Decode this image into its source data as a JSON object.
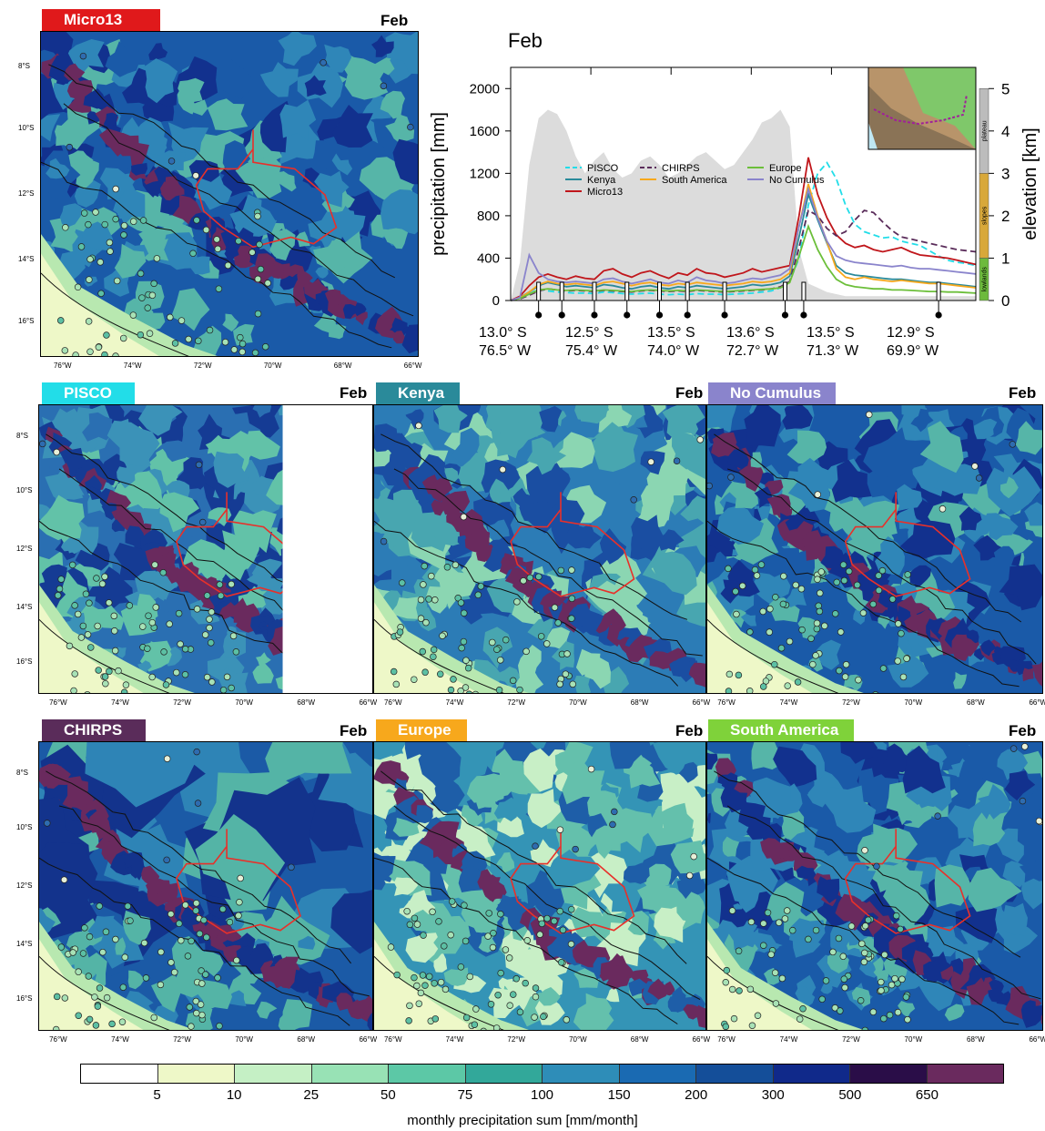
{
  "month": "Feb",
  "colors": {
    "micro13": "#e0191b",
    "pisco": "#22dde8",
    "kenya": "#2a8a9a",
    "no_cumulus": "#8a84cc",
    "chirps": "#5a2c5a",
    "europe": "#f7a81c",
    "south_america": "#7fd23a",
    "boundary": "#e8302a"
  },
  "maps": [
    {
      "id": "micro13",
      "label": "Micro13",
      "month": "Feb",
      "color": "#e0191b",
      "style": "wet",
      "cut": false
    },
    {
      "id": "pisco",
      "label": "PISCO",
      "month": "Feb",
      "color": "#22dde8",
      "style": "smooth",
      "cut": true
    },
    {
      "id": "kenya",
      "label": "Kenya",
      "month": "Feb",
      "color": "#2a8a9a",
      "style": "noisy",
      "cut": false
    },
    {
      "id": "nocumulus",
      "label": "No Cumulus",
      "month": "Feb",
      "color": "#8a84cc",
      "style": "wet",
      "cut": false
    },
    {
      "id": "chirps",
      "label": "CHIRPS",
      "month": "Feb",
      "color": "#5a2c5a",
      "style": "chirps",
      "cut": false
    },
    {
      "id": "europe",
      "label": "Europe",
      "month": "Feb",
      "color": "#f7a81c",
      "style": "dry",
      "cut": false
    },
    {
      "id": "southamerica",
      "label": "South America",
      "month": "Feb",
      "color": "#7fd23a",
      "style": "wet",
      "cut": false
    }
  ],
  "lat_labels": [
    "8°S",
    "10°S",
    "12°S",
    "14°S",
    "16°S"
  ],
  "lon_labels": [
    "76°W",
    "74°W",
    "72°W",
    "70°W",
    "68°W",
    "66°W"
  ],
  "chart_data": {
    "type": "line",
    "title": "Feb",
    "ylabel": "precipitation [mm]",
    "y2label": "elevation [km]",
    "ylim": [
      0,
      2200
    ],
    "yticks": [
      0,
      400,
      800,
      1200,
      1600,
      2000
    ],
    "y2lim": [
      0,
      5.5
    ],
    "y2ticks": [
      0,
      1,
      2,
      3,
      4,
      5
    ],
    "x_tick_labels": [
      {
        "lat": "13.0° S",
        "lon": "76.5° W"
      },
      {
        "lat": "12.5° S",
        "lon": "75.4° W"
      },
      {
        "lat": "13.5° S",
        "lon": "74.0° W"
      },
      {
        "lat": "13.6° S",
        "lon": "72.7° W"
      },
      {
        "lat": "13.5° S",
        "lon": "71.3° W"
      },
      {
        "lat": "12.9° S",
        "lon": "69.9° W"
      }
    ],
    "x": [
      0,
      2,
      4,
      6,
      8,
      10,
      12,
      14,
      16,
      18,
      20,
      22,
      24,
      26,
      28,
      30,
      32,
      34,
      36,
      38,
      40,
      42,
      44,
      46,
      48,
      50,
      52,
      54,
      56,
      58,
      60,
      62,
      64,
      66,
      68,
      70,
      72,
      74,
      76,
      78,
      80,
      82,
      84,
      86,
      88,
      90,
      92,
      94,
      96,
      98,
      100
    ],
    "elevation_km": [
      0.0,
      0.9,
      3.2,
      4.3,
      4.5,
      4.4,
      4.0,
      3.4,
      3.0,
      3.3,
      3.5,
      3.1,
      2.9,
      3.0,
      3.3,
      3.4,
      3.2,
      2.9,
      3.0,
      3.2,
      3.4,
      3.5,
      3.3,
      3.1,
      3.2,
      3.5,
      3.8,
      4.2,
      4.3,
      4.5,
      4.1,
      1.2,
      0.4,
      0.3,
      0.2,
      0.15,
      0.1,
      0.1,
      0.1,
      0.1,
      0.1,
      0.1,
      0.1,
      0.1,
      0.1,
      0.1,
      0.1,
      0.1,
      0.1,
      0.1,
      0.1
    ],
    "elevation_bands": [
      {
        "label": "plateau",
        "color": "#bcbcbc",
        "from_km": 3.0,
        "to_km": 5.0
      },
      {
        "label": "slopes",
        "color": "#d8a83a",
        "from_km": 1.0,
        "to_km": 3.0
      },
      {
        "label": "lowlands",
        "color": "#6dba3c",
        "from_km": 0.0,
        "to_km": 1.0
      }
    ],
    "series": [
      {
        "name": "PISCO",
        "color": "#22dde8",
        "dash": true,
        "values": [
          0,
          20,
          60,
          110,
          90,
          80,
          75,
          70,
          70,
          65,
          80,
          75,
          65,
          60,
          65,
          70,
          60,
          55,
          60,
          55,
          65,
          60,
          60,
          55,
          60,
          65,
          70,
          80,
          90,
          120,
          180,
          400,
          900,
          1200,
          1300,
          1150,
          900,
          720,
          650,
          620,
          590,
          600,
          560,
          540,
          520,
          470,
          420,
          380,
          360,
          350,
          330
        ]
      },
      {
        "name": "Kenya",
        "color": "#2a8a9a",
        "dash": false,
        "values": [
          0,
          30,
          80,
          140,
          170,
          150,
          130,
          140,
          130,
          120,
          150,
          140,
          120,
          110,
          130,
          140,
          120,
          110,
          130,
          120,
          140,
          130,
          120,
          110,
          120,
          130,
          150,
          140,
          150,
          170,
          230,
          600,
          1000,
          760,
          540,
          330,
          260,
          240,
          230,
          220,
          210,
          200,
          200,
          190,
          180,
          170,
          170,
          160,
          150,
          140,
          130
        ]
      },
      {
        "name": "Micro13",
        "color": "#c0161b",
        "dash": false,
        "values": [
          0,
          40,
          140,
          220,
          250,
          220,
          200,
          230,
          210,
          200,
          280,
          300,
          250,
          220,
          260,
          280,
          240,
          210,
          260,
          240,
          300,
          260,
          250,
          220,
          240,
          260,
          300,
          270,
          290,
          310,
          330,
          800,
          1350,
          1000,
          780,
          620,
          540,
          500,
          520,
          480,
          460,
          480,
          500,
          460,
          430,
          420,
          410,
          400,
          380,
          360,
          340
        ]
      },
      {
        "name": "CHIRPS",
        "color": "#5a2c5a",
        "dash": true,
        "values": [
          0,
          15,
          50,
          90,
          110,
          100,
          90,
          95,
          90,
          85,
          95,
          90,
          85,
          80,
          90,
          95,
          90,
          85,
          90,
          85,
          95,
          90,
          85,
          80,
          85,
          90,
          95,
          100,
          110,
          130,
          180,
          500,
          850,
          800,
          680,
          610,
          650,
          760,
          850,
          830,
          740,
          660,
          600,
          580,
          560,
          540,
          520,
          500,
          480,
          470,
          460
        ]
      },
      {
        "name": "South America",
        "color": "#f7a81c",
        "dash": false,
        "values": [
          0,
          25,
          80,
          150,
          180,
          160,
          150,
          160,
          150,
          140,
          170,
          180,
          160,
          140,
          160,
          170,
          150,
          140,
          160,
          150,
          170,
          160,
          150,
          140,
          150,
          160,
          180,
          170,
          180,
          200,
          260,
          700,
          1100,
          800,
          550,
          300,
          220,
          200,
          220,
          200,
          190,
          180,
          190,
          180,
          170,
          160,
          160,
          150,
          140,
          130,
          120
        ]
      },
      {
        "name": "Europe",
        "color": "#6cbf3a",
        "dash": false,
        "values": [
          0,
          20,
          60,
          100,
          110,
          100,
          95,
          100,
          95,
          90,
          100,
          95,
          90,
          85,
          95,
          100,
          95,
          90,
          95,
          90,
          100,
          95,
          90,
          85,
          90,
          95,
          100,
          105,
          110,
          120,
          170,
          420,
          700,
          480,
          320,
          200,
          150,
          130,
          120,
          110,
          110,
          100,
          100,
          95,
          90,
          85,
          85,
          80,
          80,
          75,
          70
        ]
      },
      {
        "name": "No Cumulus",
        "color": "#8a84cc",
        "dash": false,
        "values": [
          0,
          30,
          430,
          260,
          200,
          180,
          170,
          180,
          170,
          160,
          200,
          210,
          180,
          160,
          180,
          200,
          170,
          160,
          190,
          170,
          220,
          190,
          180,
          160,
          170,
          190,
          210,
          200,
          220,
          240,
          300,
          700,
          1050,
          780,
          560,
          420,
          380,
          360,
          350,
          340,
          330,
          320,
          330,
          310,
          300,
          300,
          290,
          280,
          270,
          260,
          250
        ]
      }
    ],
    "markers_x": [
      6,
      11,
      18,
      25,
      32,
      38,
      46,
      59,
      63,
      92
    ],
    "legend": [
      "PISCO",
      "Kenya",
      "Micro13",
      "CHIRPS",
      "South America",
      "Europe",
      "No Cumulus"
    ],
    "legend_position": "upper-middle"
  },
  "colorbar": {
    "title": "monthly precipitation sum [mm/month]",
    "ticks": [
      "5",
      "10",
      "25",
      "50",
      "75",
      "100",
      "150",
      "200",
      "300",
      "500",
      "650"
    ],
    "colors": [
      "#ffffff",
      "#eef8c8",
      "#c5f0c5",
      "#98e2b5",
      "#5cc8a6",
      "#32a89a",
      "#2e8db8",
      "#1a6ab2",
      "#144e99",
      "#10298a",
      "#2a0d48",
      "#6a2a5e"
    ]
  }
}
